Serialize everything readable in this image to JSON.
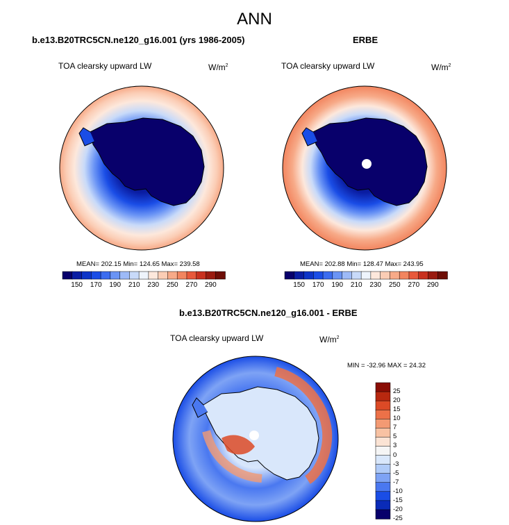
{
  "figure": {
    "title": "ANN",
    "variable_label": "TOA clearsky upward LW",
    "units": "W/m",
    "units_exp": "2"
  },
  "colors": {
    "abs_levels": [
      "#08006b",
      "#0a1da3",
      "#0d34c8",
      "#1a4de6",
      "#3b6cf0",
      "#6a94f5",
      "#9dbaf7",
      "#c8daf9",
      "#eef4fc",
      "#fde8dc",
      "#fbcdb5",
      "#f7aa88",
      "#f2855f",
      "#e8593b",
      "#c8311f",
      "#9a1b10",
      "#6e0e07"
    ],
    "diff_levels": [
      "#08006b",
      "#0a2bb8",
      "#1a4de6",
      "#4a78f0",
      "#7ea3f5",
      "#b0cbf8",
      "#d9e7fb",
      "#f5f5f5",
      "#fbe3d4",
      "#f8c2a3",
      "#f39a73",
      "#ec7148",
      "#dc4a26",
      "#b8280f",
      "#8a0d04"
    ]
  },
  "chart_data": [
    {
      "type": "heatmap",
      "projection": "south-polar-stereographic",
      "title": "b.e13.B20TRC5CN.ne120_g16.001 (yrs 1986-2005)",
      "stats": "MEAN= 202.15  Min= 124.65  Max= 239.58",
      "mean": 202.15,
      "min": 124.65,
      "max": 239.58,
      "colorbar": {
        "orientation": "horizontal",
        "levels": [
          150,
          160,
          170,
          180,
          190,
          200,
          210,
          220,
          230,
          240,
          250,
          260,
          270,
          280,
          290
        ],
        "tick_labels": [
          "150",
          "170",
          "190",
          "210",
          "230",
          "250",
          "270",
          "290"
        ]
      }
    },
    {
      "type": "heatmap",
      "projection": "south-polar-stereographic",
      "title": "ERBE",
      "stats": "MEAN= 202.88  Min= 128.47  Max= 243.95",
      "mean": 202.88,
      "min": 128.47,
      "max": 243.95,
      "colorbar": {
        "orientation": "horizontal",
        "levels": [
          150,
          160,
          170,
          180,
          190,
          200,
          210,
          220,
          230,
          240,
          250,
          260,
          270,
          280,
          290
        ],
        "tick_labels": [
          "150",
          "170",
          "190",
          "210",
          "230",
          "250",
          "270",
          "290"
        ]
      }
    },
    {
      "type": "heatmap",
      "projection": "south-polar-stereographic",
      "title": "b.e13.B20TRC5CN.ne120_g16.001 - ERBE",
      "stats": "MIN = -32.96 MAX =  24.32",
      "min": -32.96,
      "max": 24.32,
      "colorbar": {
        "orientation": "vertical",
        "levels": [
          -25,
          -20,
          -15,
          -10,
          -7,
          -5,
          -3,
          0,
          3,
          5,
          7,
          10,
          15,
          20,
          25
        ],
        "tick_labels": [
          "25",
          "20",
          "15",
          "10",
          "7",
          "5",
          "3",
          "0",
          "-3",
          "-5",
          "-7",
          "-10",
          "-15",
          "-20",
          "-25"
        ]
      }
    }
  ]
}
